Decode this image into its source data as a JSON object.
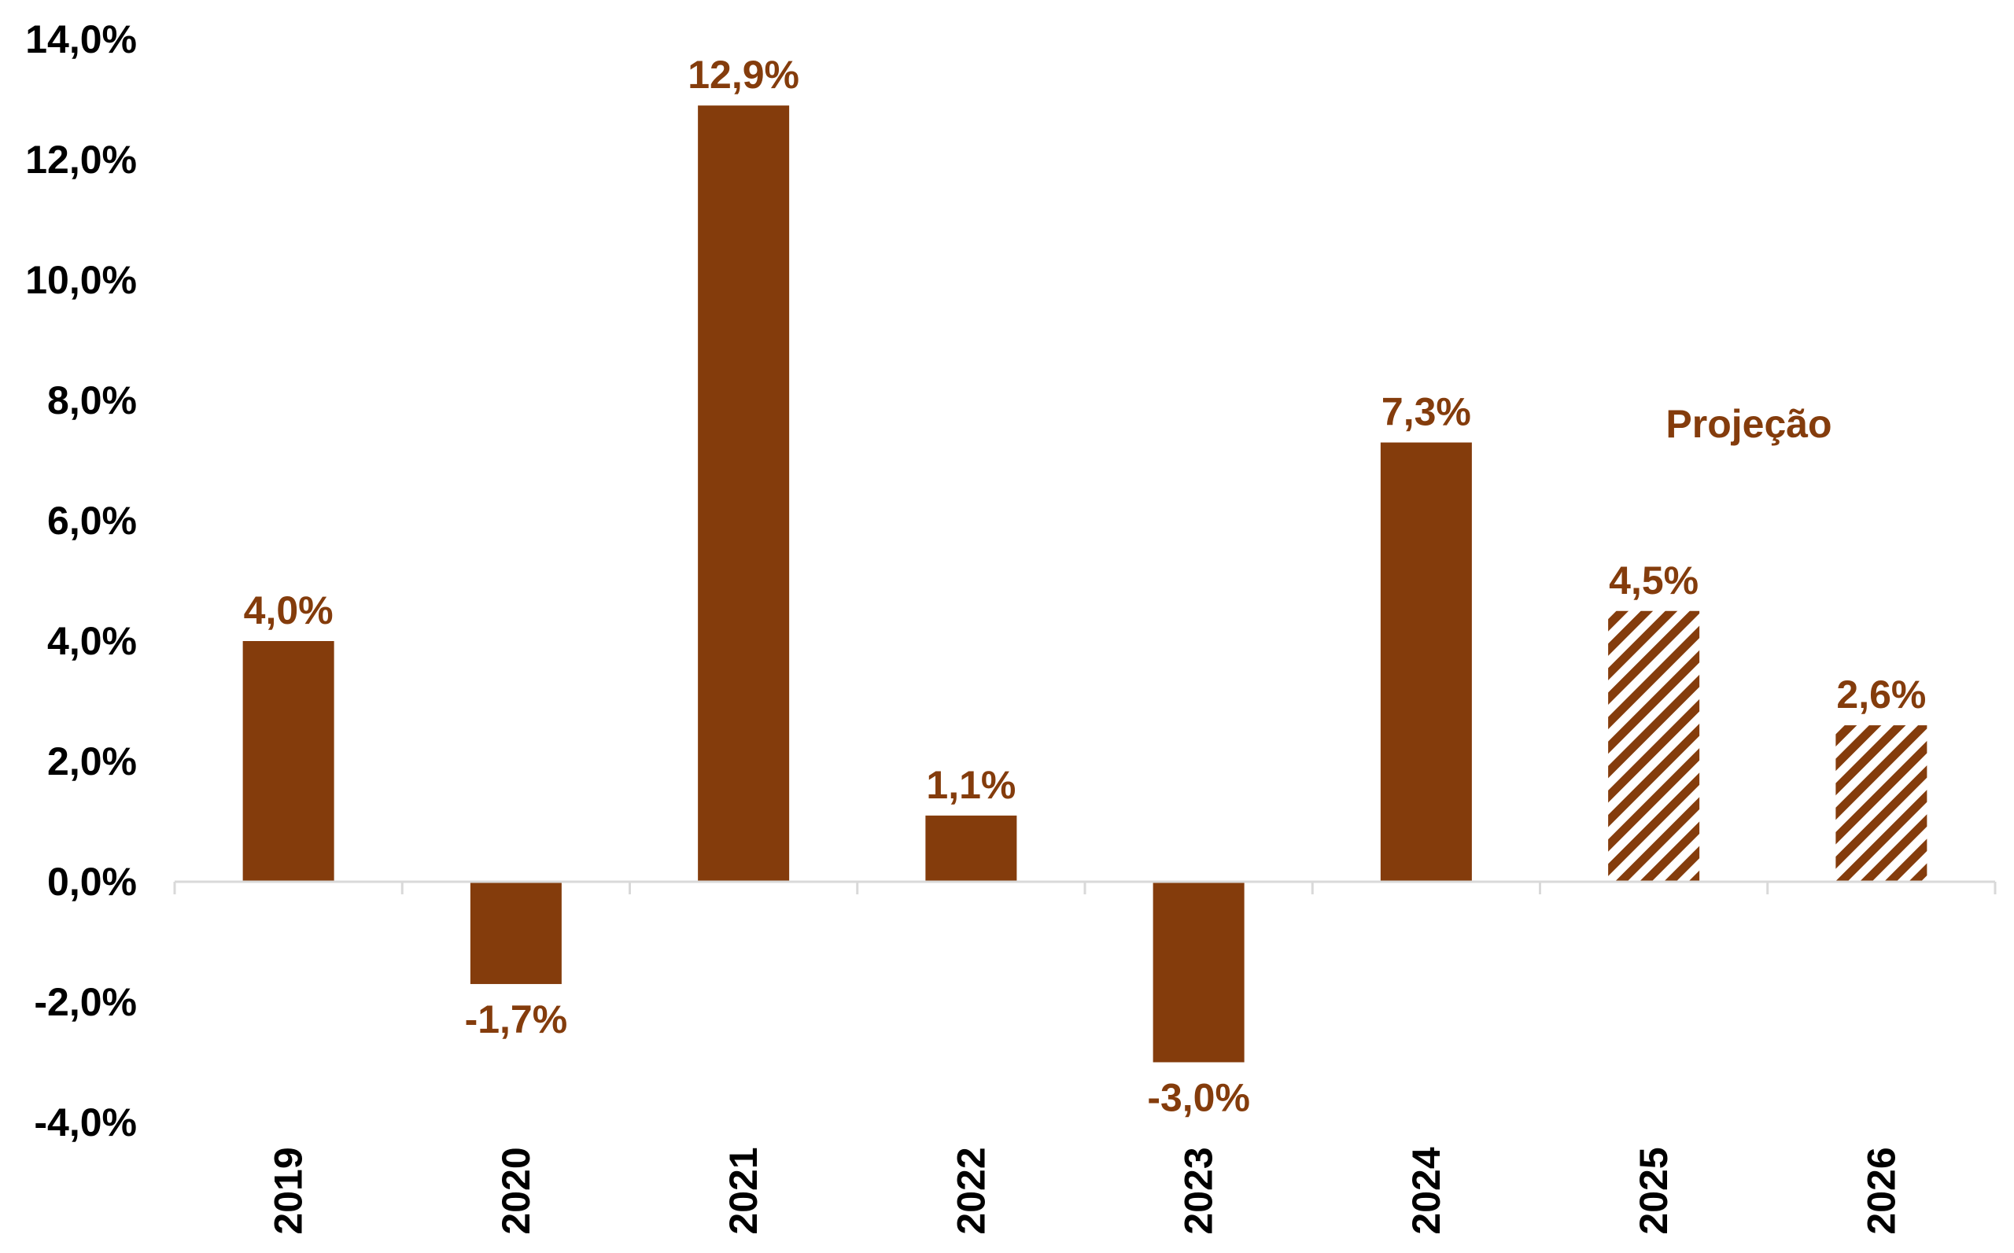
{
  "chart_data": {
    "type": "bar",
    "categories": [
      "2019",
      "2020",
      "2021",
      "2022",
      "2023",
      "2024",
      "2025",
      "2026"
    ],
    "values": [
      4.0,
      -1.7,
      12.9,
      1.1,
      -3.0,
      7.3,
      4.5,
      2.6
    ],
    "value_labels": [
      "4,0%",
      "-1,7%",
      "12,9%",
      "1,1%",
      "-3,0%",
      "7,3%",
      "4,5%",
      "2,6%"
    ],
    "projected": [
      false,
      false,
      false,
      false,
      false,
      false,
      true,
      true
    ],
    "annotation": "Projeção",
    "yticks": [
      14,
      12,
      10,
      8,
      6,
      4,
      2,
      0,
      -2,
      -4
    ],
    "ytick_labels": [
      "14,0%",
      "12,0%",
      "10,0%",
      "8,0%",
      "6,0%",
      "4,0%",
      "2,0%",
      "0,0%",
      "-2,0%",
      "-4,0%"
    ],
    "ylim": [
      -4,
      14
    ],
    "grid": false,
    "legend": "none",
    "colors": {
      "bar": "#843C0C",
      "axis": "#D9D9D9",
      "tick_text": "#000000"
    }
  }
}
